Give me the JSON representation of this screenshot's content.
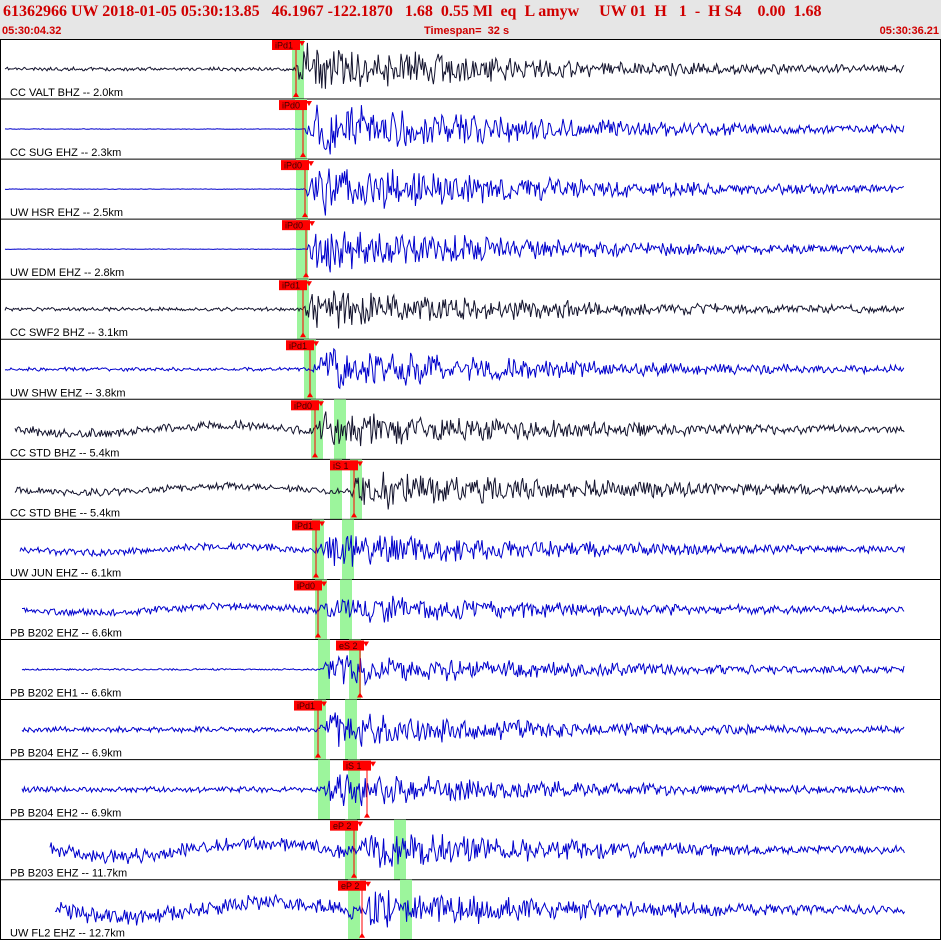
{
  "header": {
    "info": "61362966 UW 2018-01-05 05:30:13.85   46.1967 -122.1870   1.68  0.55 Ml  eq  L amyw     UW 01  H   1  -  H S4    0.00  1.68",
    "start_time": "05:30:04.32",
    "timespan": "Timespan=  32 s",
    "end_time": "05:30:36.21"
  },
  "colors": {
    "pick": "#ff0000",
    "window": "#9cf59c",
    "trace_blue": "#0000cc",
    "trace_black": "#14142e"
  },
  "traces": [
    {
      "label": "CC VALT BHZ -- 2.0km",
      "color": "black",
      "pick": "iPd1"
    },
    {
      "label": "CC SUG EHZ -- 2.3km",
      "color": "blue",
      "pick": "iPd0"
    },
    {
      "label": "UW HSR EHZ -- 2.5km",
      "color": "blue",
      "pick": "iPd0"
    },
    {
      "label": "UW EDM EHZ -- 2.8km",
      "color": "blue",
      "pick": "iPd0"
    },
    {
      "label": "CC SWF2 BHZ -- 3.1km",
      "color": "black",
      "pick": "iPd1"
    },
    {
      "label": "UW SHW EHZ -- 3.8km",
      "color": "blue",
      "pick": "iPd1"
    },
    {
      "label": "CC STD BHZ -- 5.4km",
      "color": "black",
      "pick": "iPd0"
    },
    {
      "label": "CC STD BHE -- 5.4km",
      "color": "black",
      "pick": "iS 1"
    },
    {
      "label": "UW JUN EHZ -- 6.1km",
      "color": "blue",
      "pick": "iPd1"
    },
    {
      "label": "PB B202 EHZ -- 6.6km",
      "color": "blue",
      "pick": "iPd0"
    },
    {
      "label": "PB B202 EH1 -- 6.6km",
      "color": "blue",
      "pick": "eS 2"
    },
    {
      "label": "PB B204 EHZ -- 6.9km",
      "color": "blue",
      "pick": "iPd1"
    },
    {
      "label": "PB B204 EH2 -- 6.9km",
      "color": "blue",
      "pick": "iS 1"
    },
    {
      "label": "PB B203 EHZ -- 11.7km",
      "color": "blue",
      "pick": "eP 2"
    },
    {
      "label": "UW FL2 EHZ -- 12.7km",
      "color": "blue",
      "pick": "eP 2"
    }
  ]
}
